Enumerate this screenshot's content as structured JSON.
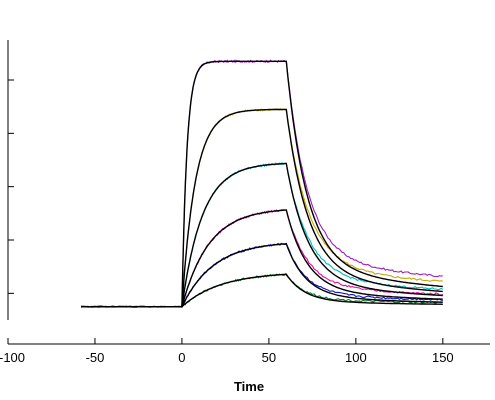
{
  "chart_data": {
    "type": "line",
    "title": "",
    "xlabel": "Time",
    "ylabel": "",
    "xlim": [
      -100,
      180
    ],
    "ylim": [
      -5,
      100
    ],
    "x_ticks": [
      -100,
      -50,
      0,
      50,
      100,
      150
    ],
    "x_tick_labels": [
      "-100",
      "-50",
      "0",
      "50",
      "100",
      "150"
    ],
    "y_ticks": [
      5,
      25,
      45,
      65,
      85
    ],
    "y_tick_labels": [
      "",
      "",
      "",
      "",
      ""
    ],
    "legend": "none",
    "grid": false,
    "baseline": 0,
    "association_window": [
      0,
      60
    ],
    "dissociation_end": 150,
    "series": [
      {
        "plateau": 92,
        "ka": 0.35,
        "kd_fast": 0.085,
        "kd_slow": 0.012,
        "tail_raw": 7,
        "tail_fit": 3,
        "raw_color": "#9b1fc0"
      },
      {
        "plateau": 74,
        "ka": 0.13,
        "kd_fast": 0.08,
        "kd_slow": 0.012,
        "tail_raw": 6,
        "tail_fit": 2,
        "raw_color": "#c8a800"
      },
      {
        "plateau": 54,
        "ka": 0.085,
        "kd_fast": 0.08,
        "kd_slow": 0.012,
        "tail_raw": 4,
        "tail_fit": 1.5,
        "raw_color": "#00bcbc"
      },
      {
        "plateau": 37,
        "ka": 0.065,
        "kd_fast": 0.085,
        "kd_slow": 0.012,
        "tail_raw": 3,
        "tail_fit": 1,
        "raw_color": "#e0109a"
      },
      {
        "plateau": 24.5,
        "ka": 0.055,
        "kd_fast": 0.09,
        "kd_slow": 0.012,
        "tail_raw": 1.5,
        "tail_fit": 0.5,
        "raw_color": "#1010c8"
      },
      {
        "plateau": 13,
        "ka": 0.045,
        "kd_fast": 0.095,
        "kd_slow": 0.012,
        "tail_raw": 1,
        "tail_fit": 0.3,
        "raw_color": "#0a7a2a"
      }
    ],
    "fit_color": "#000000"
  }
}
